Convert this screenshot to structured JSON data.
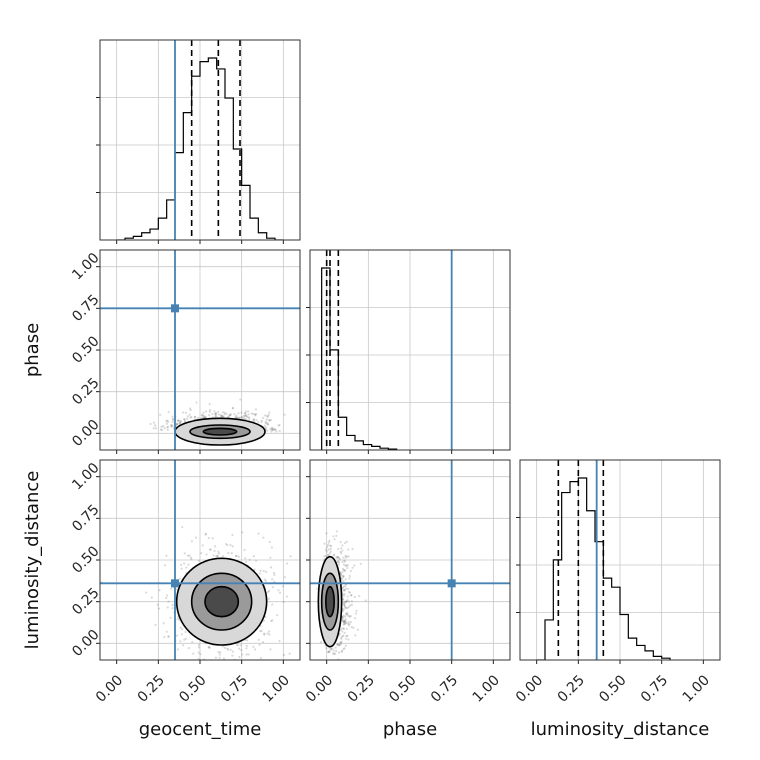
{
  "chart_data": {
    "type": "corner",
    "parameters": [
      "geocent_time",
      "phase",
      "luminosity_distance"
    ],
    "axis_range": [
      -0.1,
      1.1
    ],
    "ticks": [
      0.0,
      0.25,
      0.5,
      0.75,
      1.0
    ],
    "tick_labels": [
      "0.00",
      "0.25",
      "0.50",
      "0.75",
      "1.00"
    ],
    "grid": true,
    "truths": [
      0.35,
      0.75,
      0.36
    ],
    "colors": {
      "truth": "#4682b4",
      "hist": "#000000",
      "quantile": "#000000",
      "grid": "#c8c8c8",
      "points": "#555555"
    },
    "histograms": {
      "geocent_time": {
        "bin_edges": [
          0.0,
          0.05,
          0.1,
          0.15,
          0.2,
          0.25,
          0.3,
          0.35,
          0.4,
          0.45,
          0.5,
          0.55,
          0.6,
          0.65,
          0.7,
          0.75,
          0.8,
          0.85,
          0.9,
          0.95,
          1.0
        ],
        "counts": [
          0,
          0.01,
          0.02,
          0.04,
          0.06,
          0.12,
          0.22,
          0.48,
          0.7,
          0.9,
          0.98,
          1.0,
          0.94,
          0.78,
          0.5,
          0.3,
          0.12,
          0.04,
          0.01,
          0.0
        ],
        "quantiles": [
          0.45,
          0.61,
          0.74
        ]
      },
      "phase": {
        "bin_edges": [
          -0.03,
          0.02,
          0.07,
          0.12,
          0.17,
          0.22,
          0.27,
          0.32,
          0.37,
          0.42
        ],
        "counts": [
          1.0,
          0.55,
          0.18,
          0.08,
          0.05,
          0.03,
          0.02,
          0.01,
          0.005
        ],
        "quantiles": [
          0.0,
          0.02,
          0.07
        ]
      },
      "luminosity_distance": {
        "bin_edges": [
          0.0,
          0.05,
          0.1,
          0.15,
          0.2,
          0.25,
          0.3,
          0.35,
          0.4,
          0.45,
          0.5,
          0.55,
          0.6,
          0.65,
          0.7,
          0.75,
          0.8
        ],
        "counts": [
          0.0,
          0.22,
          0.55,
          0.92,
          0.98,
          1.0,
          0.82,
          0.65,
          0.45,
          0.4,
          0.25,
          0.12,
          0.08,
          0.05,
          0.02,
          0.01
        ],
        "quantiles": [
          0.13,
          0.25,
          0.4
        ]
      }
    },
    "scatter_2d": [
      {
        "x": "geocent_time",
        "y": "phase",
        "center": [
          0.62,
          0.01
        ],
        "spread": [
          0.15,
          0.05
        ],
        "contour_radii": [
          [
            0.27,
            0.08
          ],
          [
            0.18,
            0.04
          ],
          [
            0.1,
            0.02
          ]
        ]
      },
      {
        "x": "geocent_time",
        "y": "luminosity_distance",
        "center": [
          0.63,
          0.25
        ],
        "spread": [
          0.15,
          0.15
        ],
        "contour_radii": [
          [
            0.27,
            0.26
          ],
          [
            0.18,
            0.17
          ],
          [
            0.1,
            0.09
          ]
        ]
      },
      {
        "x": "phase",
        "y": "luminosity_distance",
        "center": [
          0.02,
          0.25
        ],
        "spread": [
          0.04,
          0.15
        ],
        "contour_radii": [
          [
            0.07,
            0.27
          ],
          [
            0.05,
            0.17
          ],
          [
            0.025,
            0.09
          ]
        ]
      }
    ]
  }
}
